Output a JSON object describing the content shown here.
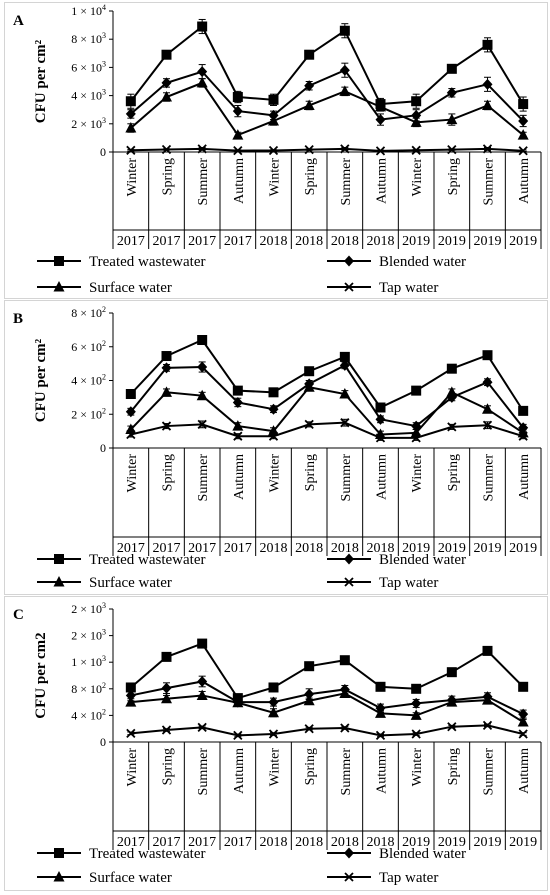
{
  "season_labels": [
    "Winter",
    "Spring",
    "Summer",
    "Autumn",
    "Winter",
    "Spring",
    "Summer",
    "Autumn",
    "Winter",
    "Spring",
    "Summer",
    "Autumn"
  ],
  "year_labels": [
    "2017",
    "2017",
    "2017",
    "2017",
    "2018",
    "2018",
    "2018",
    "2018",
    "2019",
    "2019",
    "2019",
    "2019"
  ],
  "colors": {
    "line": "#000000",
    "border": "#d4d4d4"
  },
  "chart_data": [
    {
      "panel_label": "A",
      "type": "line",
      "ylabel": "CFU per cm²",
      "ylim": [
        0,
        10000
      ],
      "y_ticks": [
        0,
        2000,
        4000,
        6000,
        8000,
        10000
      ],
      "y_tick_mant": [
        "0",
        "2 × 10",
        "4 × 10",
        "6 × 10",
        "8 × 10",
        "1 × 10"
      ],
      "y_tick_exp": [
        "",
        "3",
        "3",
        "3",
        "3",
        "4"
      ],
      "series": [
        {
          "name": "Treated wastewater",
          "marker": "square",
          "values": [
            3600,
            6900,
            8900,
            3900,
            3700,
            6900,
            8600,
            3400,
            3600,
            5900,
            7600,
            3400
          ]
        },
        {
          "name": "Blended water",
          "marker": "diamond",
          "values": [
            2700,
            4900,
            5700,
            2900,
            2600,
            4700,
            5800,
            2300,
            2600,
            4200,
            4800,
            2200
          ]
        },
        {
          "name": "Surface water",
          "marker": "triangle",
          "values": [
            1700,
            3900,
            4900,
            1200,
            2200,
            3300,
            4300,
            3200,
            2100,
            2300,
            3300,
            1200
          ]
        },
        {
          "name": "Tap water",
          "marker": "x",
          "values": [
            120,
            180,
            220,
            100,
            110,
            170,
            220,
            80,
            120,
            170,
            220,
            90
          ]
        }
      ],
      "errors": [
        [
          500,
          300,
          500,
          400,
          400,
          300,
          500,
          400,
          500,
          250,
          500,
          500
        ],
        [
          300,
          300,
          500,
          400,
          300,
          300,
          500,
          400,
          400,
          300,
          500,
          400
        ],
        [
          300,
          300,
          300,
          200,
          300,
          300,
          300,
          300,
          300,
          400,
          300,
          200
        ],
        [
          50,
          50,
          100,
          50,
          50,
          50,
          100,
          50,
          50,
          50,
          100,
          50
        ]
      ]
    },
    {
      "panel_label": "B",
      "type": "line",
      "ylabel": "CFU per cm²",
      "ylim": [
        0,
        800
      ],
      "y_ticks": [
        0,
        200,
        400,
        600,
        800
      ],
      "y_tick_mant": [
        "0",
        "2 × 10",
        "4 × 10",
        "6 × 10",
        "8 × 10"
      ],
      "y_tick_exp": [
        "",
        "2",
        "2",
        "2",
        "2"
      ],
      "series": [
        {
          "name": "Treated wastewater",
          "marker": "square",
          "values": [
            320,
            545,
            640,
            340,
            330,
            455,
            540,
            240,
            340,
            470,
            550,
            220
          ]
        },
        {
          "name": "Blended water",
          "marker": "diamond",
          "values": [
            215,
            475,
            480,
            270,
            230,
            380,
            490,
            170,
            130,
            300,
            390,
            120
          ]
        },
        {
          "name": "Surface water",
          "marker": "triangle",
          "values": [
            110,
            330,
            310,
            130,
            100,
            360,
            320,
            80,
            90,
            330,
            230,
            90
          ]
        },
        {
          "name": "Tap water",
          "marker": "x",
          "values": [
            80,
            130,
            140,
            70,
            70,
            140,
            150,
            60,
            60,
            125,
            135,
            70
          ]
        }
      ],
      "errors": [
        [
          20,
          20,
          15,
          20,
          20,
          20,
          20,
          20,
          20,
          20,
          20,
          20
        ],
        [
          20,
          20,
          30,
          25,
          20,
          20,
          20,
          20,
          20,
          20,
          20,
          20
        ],
        [
          20,
          20,
          20,
          20,
          20,
          20,
          20,
          20,
          20,
          20,
          20,
          20
        ],
        [
          15,
          15,
          20,
          15,
          15,
          15,
          20,
          15,
          15,
          15,
          20,
          15
        ]
      ]
    },
    {
      "panel_label": "C",
      "type": "line",
      "ylabel": "CFU per cm2",
      "ylim": [
        0,
        2000
      ],
      "y_ticks": [
        0,
        400,
        800,
        1200,
        1600,
        2000
      ],
      "y_tick_mant": [
        "0",
        "4 × 10",
        "8 × 10",
        "1 × 10",
        "2 × 10",
        "2 × 10"
      ],
      "y_tick_exp": [
        "",
        "2",
        "2",
        "3",
        "3",
        "3"
      ],
      "series": [
        {
          "name": "Treated wastewater",
          "marker": "square",
          "values": [
            820,
            1280,
            1480,
            660,
            820,
            1140,
            1230,
            830,
            800,
            1050,
            1370,
            830
          ]
        },
        {
          "name": "Blended water",
          "marker": "diamond",
          "values": [
            700,
            810,
            910,
            600,
            600,
            720,
            790,
            510,
            580,
            630,
            680,
            420
          ]
        },
        {
          "name": "Surface water",
          "marker": "triangle",
          "values": [
            600,
            650,
            700,
            590,
            440,
            620,
            730,
            430,
            400,
            600,
            630,
            300
          ]
        },
        {
          "name": "Tap water",
          "marker": "x",
          "values": [
            130,
            180,
            220,
            100,
            120,
            200,
            210,
            100,
            120,
            230,
            250,
            120
          ]
        }
      ],
      "errors": [
        [
          40,
          40,
          40,
          40,
          40,
          40,
          40,
          40,
          40,
          40,
          40,
          40
        ],
        [
          80,
          80,
          80,
          60,
          60,
          80,
          60,
          60,
          60,
          60,
          60,
          60
        ],
        [
          50,
          50,
          60,
          40,
          60,
          40,
          50,
          40,
          40,
          40,
          40,
          40
        ],
        [
          20,
          20,
          20,
          20,
          20,
          20,
          20,
          20,
          20,
          20,
          20,
          20
        ]
      ]
    }
  ]
}
